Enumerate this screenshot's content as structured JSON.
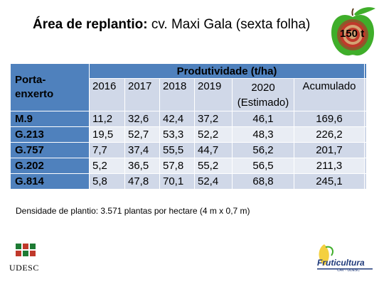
{
  "title": {
    "bold": "Área de replantio:",
    "rest": " cv. Maxi Gala (sexta folha)"
  },
  "badge": {
    "text": "150 t"
  },
  "table": {
    "stub_header": "Porta-\nenxerto",
    "group_header": "Produtividade (t/ha)",
    "columns": [
      "2016",
      "2017",
      "2018",
      "2019",
      "2020\n(Estimado)",
      "Acumulado"
    ],
    "rows": [
      {
        "name": "M.9",
        "values": [
          "11,2",
          "32,6",
          "42,4",
          "37,2",
          "46,1",
          "169,6"
        ]
      },
      {
        "name": "G.213",
        "values": [
          "19,5",
          "52,7",
          "53,3",
          "52,2",
          "48,3",
          "226,2"
        ]
      },
      {
        "name": "G.757",
        "values": [
          "7,7",
          "37,4",
          "55,5",
          "44,7",
          "56,2",
          "201,7"
        ]
      },
      {
        "name": "G.202",
        "values": [
          "5,2",
          "36,5",
          "57,8",
          "55,2",
          "56,5",
          "211,3"
        ]
      },
      {
        "name": "G.814",
        "values": [
          "5,8",
          "47,8",
          "70,1",
          "52,4",
          "68,8",
          "245,1"
        ]
      }
    ]
  },
  "footnote": "Densidade de plantio: 3.571 plantas por hectare (4 m x 0,7 m)",
  "logos": {
    "left": "UDESC",
    "right_name": "Fruticultura",
    "right_sub": "CAV - UDESC"
  },
  "colors": {
    "header_blue": "#4f81bd",
    "row_light": "#d0d8e8",
    "row_lighter": "#e9edf4",
    "apple_green": "#3fae2a",
    "apple_target": "#c0392b"
  }
}
